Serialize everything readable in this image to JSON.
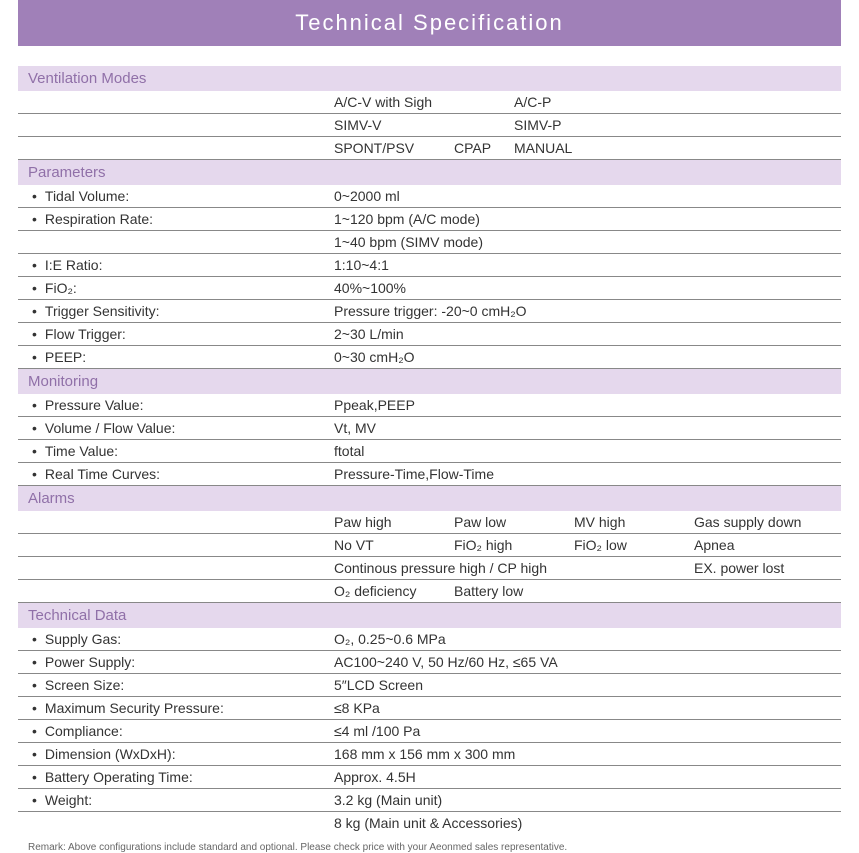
{
  "title": "Technical Specification",
  "colors": {
    "title_bg": "#a080b8",
    "title_text": "#ffffff",
    "section_bg": "#e5d8ed",
    "section_text": "#9070a8",
    "row_border": "#888888",
    "text": "#333333",
    "remark": "#666666"
  },
  "sections": {
    "ventilation": {
      "header": "Ventilation Modes",
      "rows": [
        {
          "values": [
            "A/C-V with Sigh",
            "A/C-P"
          ]
        },
        {
          "values": [
            "SIMV-V",
            "SIMV-P"
          ]
        },
        {
          "values": [
            "SPONT/PSV",
            "CPAP",
            "MANUAL"
          ]
        }
      ]
    },
    "parameters": {
      "header": "Parameters",
      "rows": [
        {
          "label": "Tidal Volume:",
          "value": "0~2000 ml"
        },
        {
          "label": "Respiration Rate:",
          "value": "1~120 bpm (A/C mode)"
        },
        {
          "label": "",
          "value": "1~40 bpm (SIMV mode)"
        },
        {
          "label": "I:E Ratio:",
          "value": "1:10~4:1"
        },
        {
          "label": "FiO₂:",
          "value": "40%~100%"
        },
        {
          "label": "Trigger Sensitivity:",
          "value": "Pressure trigger: -20~0 cmH₂O"
        },
        {
          "label": "Flow Trigger:",
          "value": "2~30 L/min"
        },
        {
          "label": "PEEP:",
          "value": "0~30 cmH₂O"
        }
      ]
    },
    "monitoring": {
      "header": "Monitoring",
      "rows": [
        {
          "label": "Pressure Value:",
          "value": "Ppeak,PEEP"
        },
        {
          "label": "Volume / Flow Value:",
          "value": "Vt, MV"
        },
        {
          "label": "Time Value:",
          "value": "ftotal"
        },
        {
          "label": "Real Time Curves:",
          "value": "Pressure-Time,Flow-Time"
        }
      ]
    },
    "alarms": {
      "header": "Alarms",
      "rows": [
        {
          "values": [
            "Paw high",
            "Paw low",
            "MV high",
            "Gas supply down"
          ]
        },
        {
          "values": [
            "No VT",
            "FiO₂ high",
            "FiO₂ low",
            "Apnea"
          ]
        },
        {
          "values_wide": [
            "Continous pressure high / CP high",
            "EX. power lost"
          ]
        },
        {
          "values": [
            "O₂ deficiency",
            "Battery low"
          ]
        }
      ]
    },
    "technical": {
      "header": "Technical Data",
      "rows": [
        {
          "label": "Supply Gas:",
          "value": "O₂, 0.25~0.6 MPa"
        },
        {
          "label": "Power Supply:",
          "value": "AC100~240 V, 50 Hz/60 Hz, ≤65 VA"
        },
        {
          "label": "Screen Size:",
          "value": "5″LCD Screen"
        },
        {
          "label": "Maximum Security Pressure:",
          "value": "≤8 KPa"
        },
        {
          "label": "Compliance:",
          "value": "≤4 ml /100 Pa"
        },
        {
          "label": "Dimension (WxDxH):",
          "value": "168 mm x 156 mm x 300 mm"
        },
        {
          "label": "Battery Operating Time:",
          "value": "Approx. 4.5H"
        },
        {
          "label": "Weight:",
          "value": "3.2 kg (Main unit)"
        },
        {
          "label": "",
          "value": "8 kg (Main unit & Accessories)"
        }
      ]
    }
  },
  "remark": "Remark: Above configurations include standard and optional. Please check price with your Aeonmed sales representative."
}
